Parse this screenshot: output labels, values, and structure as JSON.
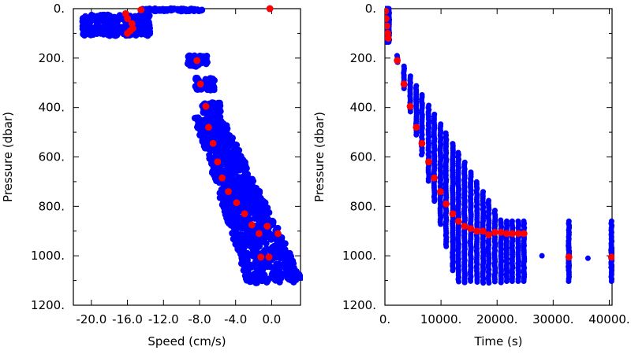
{
  "chart_data": [
    {
      "type": "scatter",
      "xlabel": "Speed (cm/s)",
      "ylabel": "Pressure (dbar)",
      "xlim": [
        -22.0,
        3.2
      ],
      "ylim": [
        1200,
        0
      ],
      "x_ticks": [
        -20.0,
        -16.0,
        -12.0,
        -8.0,
        -4.0,
        0.0
      ],
      "x_tick_labels": [
        "-20.0",
        "-16.0",
        "-12.0",
        "-8.0",
        "-4.0",
        "0.0"
      ],
      "y_ticks": [
        0,
        200,
        400,
        600,
        800,
        1000,
        1200
      ],
      "y_tick_labels": [
        "0.",
        "200.",
        "400.",
        "600.",
        "800.",
        "1000.",
        "1200."
      ],
      "grid": false,
      "colors": {
        "raw": "#0000ff",
        "mean": "#ff0000"
      },
      "series": [
        {
          "role": "raw",
          "clusters": [
            {
              "x": [
                -21.0,
                -13.5
              ],
              "y": [
                25,
                110
              ]
            },
            {
              "x": [
                -14.5,
                -7.5
              ],
              "y": [
                0,
                10
              ]
            },
            {
              "x": [
                -9.3,
                -7.0
              ],
              "y": [
                190,
                235
              ]
            },
            {
              "x": [
                -8.5,
                -6.3
              ],
              "y": [
                280,
                330
              ]
            },
            {
              "x": [
                -7.7,
                -5.6
              ],
              "y": [
                380,
                440
              ]
            },
            {
              "x": [
                -7.6,
                2.5
              ],
              "y": [
                440,
                1110
              ]
            }
          ],
          "points": [
            [
              -0.2,
              0
            ],
            [
              1.5,
              1020
            ],
            [
              0.2,
              1000
            ],
            [
              -1.5,
              1090
            ]
          ]
        },
        {
          "role": "mean",
          "points": [
            [
              -14.5,
              5
            ],
            [
              -0.2,
              0
            ],
            [
              -16.2,
              20
            ],
            [
              -16.0,
              40
            ],
            [
              -15.5,
              60
            ],
            [
              -15.4,
              80
            ],
            [
              -15.7,
              90
            ],
            [
              -16.0,
              100
            ],
            [
              -8.3,
              210
            ],
            [
              -7.9,
              305
            ],
            [
              -7.3,
              395
            ],
            [
              -7.0,
              480
            ],
            [
              -6.5,
              545
            ],
            [
              -6.0,
              620
            ],
            [
              -5.5,
              685
            ],
            [
              -4.8,
              740
            ],
            [
              -3.9,
              785
            ],
            [
              -3.0,
              830
            ],
            [
              -2.2,
              875
            ],
            [
              -1.4,
              910
            ],
            [
              -0.5,
              880
            ],
            [
              0.7,
              910
            ],
            [
              -1.2,
              1005
            ],
            [
              -0.3,
              1005
            ]
          ]
        }
      ]
    },
    {
      "type": "scatter",
      "xlabel": "Time (s)",
      "ylabel": "Pressure (dbar)",
      "xlim": [
        0,
        40500
      ],
      "ylim": [
        1200,
        0
      ],
      "x_ticks": [
        0,
        10000,
        20000,
        30000,
        40000
      ],
      "x_tick_labels": [
        "0.",
        "10000.",
        "20000.",
        "30000.",
        "40000."
      ],
      "y_ticks": [
        0,
        200,
        400,
        600,
        800,
        1000,
        1200
      ],
      "y_tick_labels": [
        "0.",
        "200.",
        "400.",
        "600.",
        "800.",
        "1000.",
        "1200."
      ],
      "grid": false,
      "colors": {
        "raw": "#0000ff",
        "mean": "#ff0000"
      },
      "series": [
        {
          "role": "raw",
          "profile_times": [
            150,
            300,
            450,
            600,
            750,
            2200,
            3400,
            4500,
            5600,
            6600,
            7800,
            8800,
            9900,
            10900,
            12100,
            13100,
            14200,
            15300,
            16400,
            17500,
            18500,
            19600,
            20700,
            21700,
            22700,
            23800,
            24800,
            32800,
            40400
          ],
          "isolated_points": [
            [
              28000,
              1000
            ],
            [
              36200,
              1010
            ]
          ]
        },
        {
          "role": "mean",
          "points": [
            [
              100,
              10
            ],
            [
              200,
              40
            ],
            [
              350,
              70
            ],
            [
              500,
              100
            ],
            [
              600,
              120
            ],
            [
              2200,
              210
            ],
            [
              3400,
              305
            ],
            [
              4500,
              395
            ],
            [
              5600,
              480
            ],
            [
              6600,
              545
            ],
            [
              7800,
              620
            ],
            [
              8800,
              685
            ],
            [
              9900,
              740
            ],
            [
              10900,
              790
            ],
            [
              12100,
              830
            ],
            [
              13100,
              860
            ],
            [
              14200,
              880
            ],
            [
              15300,
              890
            ],
            [
              16400,
              900
            ],
            [
              17500,
              900
            ],
            [
              18500,
              915
            ],
            [
              19600,
              905
            ],
            [
              20700,
              905
            ],
            [
              21700,
              910
            ],
            [
              22700,
              910
            ],
            [
              23800,
              910
            ],
            [
              24800,
              910
            ],
            [
              32800,
              1005
            ],
            [
              40400,
              1005
            ]
          ]
        }
      ]
    }
  ]
}
